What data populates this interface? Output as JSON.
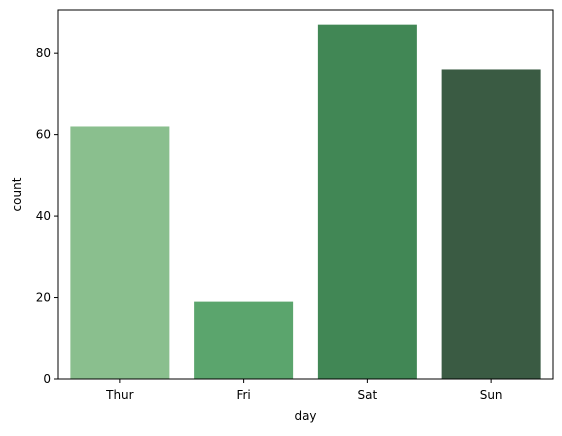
{
  "chart_data": {
    "type": "bar",
    "categories": [
      "Thur",
      "Fri",
      "Sat",
      "Sun"
    ],
    "values": [
      62,
      19,
      87,
      76
    ],
    "colors": [
      "#8abf8e",
      "#5ba56d",
      "#418755",
      "#3a5b43"
    ],
    "xlabel": "day",
    "ylabel": "count",
    "ylim": [
      0,
      90.6
    ],
    "yticks": [
      0,
      20,
      40,
      60,
      80
    ],
    "grid": false
  }
}
